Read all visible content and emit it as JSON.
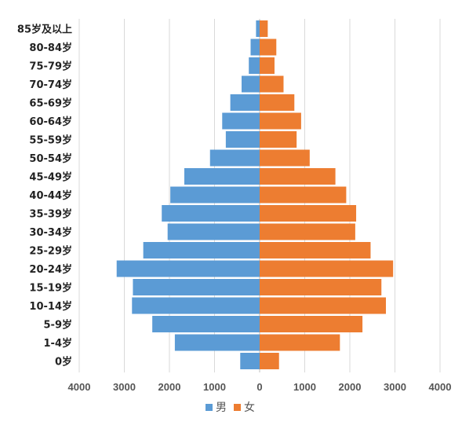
{
  "colors": {
    "male": "#5b9bd5",
    "female": "#ed7d31",
    "grid": "#d9d9d9",
    "axis": "#bfbfbf"
  },
  "chart_data": {
    "type": "bar",
    "orientation": "horizontal",
    "subtype": "population-pyramid",
    "title": "",
    "xlabel": "",
    "ylabel": "",
    "categories": [
      "85岁及以上",
      "80-84岁",
      "75-79岁",
      "70-74岁",
      "65-69岁",
      "60-64岁",
      "55-59岁",
      "50-54岁",
      "45-49岁",
      "40-44岁",
      "35-39岁",
      "30-34岁",
      "25-29岁",
      "20-24岁",
      "15-19岁",
      "10-14岁",
      "5-9岁",
      "1-4岁",
      "0岁"
    ],
    "series": [
      {
        "name": "男",
        "color": "#5b9bd5",
        "side": "left",
        "values": [
          80,
          200,
          240,
          400,
          650,
          830,
          750,
          1100,
          1670,
          1980,
          2170,
          2040,
          2580,
          3170,
          2810,
          2830,
          2380,
          1880,
          430
        ]
      },
      {
        "name": "女",
        "color": "#ed7d31",
        "side": "right",
        "values": [
          180,
          370,
          330,
          530,
          770,
          920,
          820,
          1110,
          1680,
          1920,
          2140,
          2120,
          2460,
          2960,
          2700,
          2800,
          2280,
          1780,
          430
        ]
      }
    ],
    "xlim": [
      -4000,
      4000
    ],
    "xticks": [
      -4000,
      -3000,
      -2000,
      -1000,
      0,
      1000,
      2000,
      3000,
      4000
    ],
    "xtick_labels": [
      "4000",
      "3000",
      "2000",
      "1000",
      "0",
      "1000",
      "2000",
      "3000",
      "4000"
    ],
    "grid": true,
    "legend": "bottom-center"
  }
}
